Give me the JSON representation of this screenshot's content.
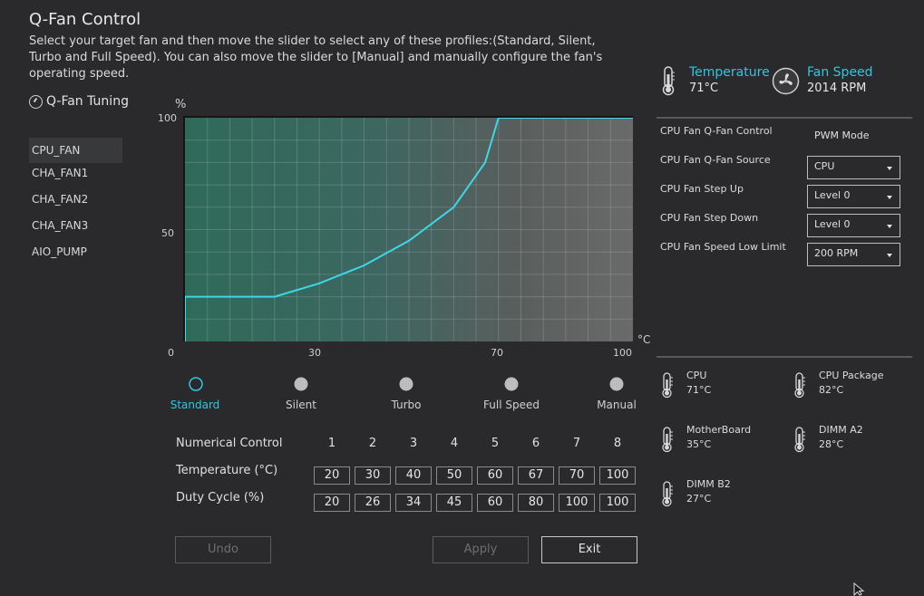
{
  "title": "Q-Fan Control",
  "description": "Select your target fan and then move the slider to select any of these profiles:(Standard, Silent, Turbo and Full Speed). You can also move the slider to [Manual] and manually configure the fan's operating speed.",
  "tuning_label": "Q-Fan Tuning",
  "fans": [
    "CPU_FAN",
    "CHA_FAN1",
    "CHA_FAN2",
    "CHA_FAN3",
    "AIO_PUMP"
  ],
  "selected_fan": "CPU_FAN",
  "chart_data": {
    "type": "line",
    "ylabel": "%",
    "xlabel": "°C",
    "y_ticks": [
      "100",
      "50",
      "0"
    ],
    "x_ticks": [
      "30",
      "70",
      "100"
    ],
    "xlim": [
      0,
      100
    ],
    "ylim": [
      0,
      100
    ],
    "grid": true,
    "series": [
      {
        "x": [
          0,
          0,
          20,
          30,
          40,
          50,
          60,
          67,
          70,
          100
        ],
        "y": [
          0,
          20,
          20,
          26,
          34,
          45,
          60,
          80,
          100,
          100
        ],
        "color": "#3fd6e8"
      }
    ]
  },
  "profiles": [
    "Standard",
    "Silent",
    "Turbo",
    "Full Speed",
    "Manual"
  ],
  "selected_profile": "Standard",
  "numerical": {
    "header_label": "Numerical Control",
    "columns": [
      "1",
      "2",
      "3",
      "4",
      "5",
      "6",
      "7",
      "8"
    ],
    "temp_label": "Temperature (°C)",
    "duty_label": "Duty Cycle (%)",
    "temps": [
      "20",
      "30",
      "40",
      "50",
      "60",
      "67",
      "70",
      "100"
    ],
    "duties": [
      "20",
      "26",
      "34",
      "45",
      "60",
      "80",
      "100",
      "100"
    ]
  },
  "buttons": {
    "undo": "Undo",
    "apply": "Apply",
    "exit": "Exit"
  },
  "status": {
    "temperature_label": "Temperature",
    "temperature_value": "71°C",
    "fanspeed_label": "Fan Speed",
    "fanspeed_value": "2014 RPM",
    "accent": "#2fc7e0"
  },
  "settings": {
    "qfan_control_label": "CPU Fan Q-Fan Control",
    "qfan_control_value": "PWM Mode",
    "qfan_source_label": "CPU Fan Q-Fan Source",
    "qfan_source_value": "CPU",
    "step_up_label": "CPU Fan Step Up",
    "step_up_value": "Level 0",
    "step_down_label": "CPU Fan Step Down",
    "step_down_value": "Level 0",
    "low_limit_label": "CPU Fan Speed Low Limit",
    "low_limit_value": "200 RPM"
  },
  "sensors": [
    {
      "name": "CPU",
      "value": "71°C"
    },
    {
      "name": "CPU Package",
      "value": "82°C"
    },
    {
      "name": "MotherBoard",
      "value": "35°C"
    },
    {
      "name": "DIMM A2",
      "value": "28°C"
    },
    {
      "name": "DIMM B2",
      "value": "27°C"
    }
  ]
}
